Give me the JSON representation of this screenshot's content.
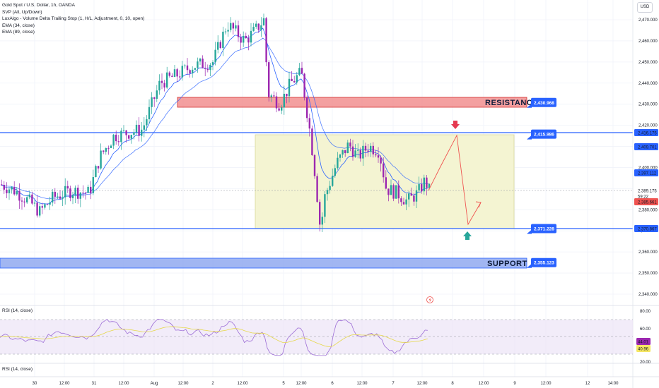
{
  "legend": {
    "symbol": "Gold Spot / U.S. Dollar, 1h, OANDA",
    "ind1": "SVP (All, Up/Down)",
    "ind2": "LuxAlgo - Volume Delta Trailing Stop (1, H/L, Adjustment, 0, 10, open)",
    "ind3": "EMA (34, close)",
    "ind4": "EMA (89, close)"
  },
  "currency": "USD",
  "rsi1_label": "RSI (14, close)",
  "rsi2_label": "RSI (14, close)",
  "colors": {
    "up": "#26a69a",
    "down": "#9c27b0",
    "ema": "#2962ff",
    "resistance": "#e57373",
    "support": "#5b7fe6",
    "range": "#f4f4d2",
    "projection": "#ef5350",
    "rsi": "#9c6cd6"
  },
  "chart_data": {
    "type": "candlestick",
    "y_ticks": [
      "2,470.000",
      "2,460.000",
      "2,450.000",
      "2,440.000",
      "2,430.000",
      "2,420.000",
      "2,410.000",
      "2,400.000",
      "2,390.000",
      "2,380.000",
      "2,370.000",
      "2,360.000",
      "2,350.000",
      "2,340.000"
    ],
    "x_ticks": [
      "30",
      "12:00",
      "31",
      "12:00",
      "Aug",
      "12:00",
      "2",
      "12:00",
      "5",
      "12:00",
      "6",
      "12:00",
      "7",
      "12:00",
      "8",
      "12:00",
      "9",
      "12:00",
      "12",
      "14:00"
    ],
    "levels": [
      {
        "name": "resistance_top",
        "value": "2,430.968"
      },
      {
        "name": "resistance_line",
        "value": "2,415.986"
      },
      {
        "name": "support_line",
        "value": "2,371.228"
      },
      {
        "name": "support_bottom",
        "value": "2,355.123"
      }
    ],
    "zones": {
      "resistance_label": "RESISTANCE",
      "support_label": "SUPPORT"
    },
    "price_tags": [
      {
        "value": "2,416.175",
        "color": "#2962ff"
      },
      {
        "value": "2,409.701",
        "color": "#2962ff"
      },
      {
        "value": "2,397.112",
        "color": "#2962ff"
      },
      {
        "value": "2,389.175",
        "color": "#131722"
      },
      {
        "value": "59:22",
        "color": "#131722"
      },
      {
        "value": "2,385.661",
        "color": "#ef5350"
      },
      {
        "value": "2,370.867",
        "color": "#2962ff"
      }
    ],
    "rsi_ticks": [
      "80.00",
      "60.00",
      "20.00"
    ],
    "rsi_tags": [
      {
        "value": "44.01",
        "color": "#9c27b0"
      },
      {
        "value": "40.96",
        "color": "#f5e663"
      }
    ]
  }
}
